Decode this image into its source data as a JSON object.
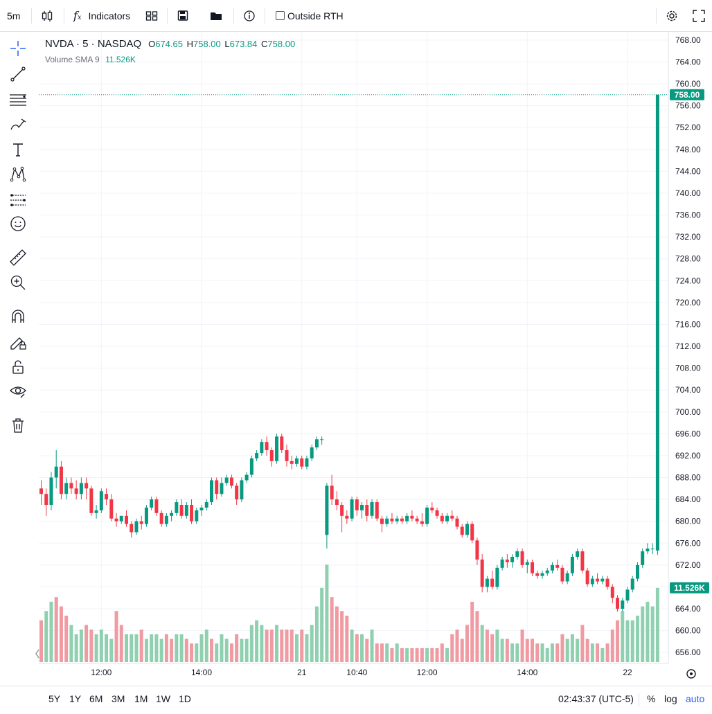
{
  "toolbar": {
    "interval": "5m",
    "indicators_label": "Indicators",
    "outside_rth_label": "Outside RTH"
  },
  "legend": {
    "symbol": "NVDA · 5 · NASDAQ",
    "open_label": "O",
    "open": "674.65",
    "high_label": "H",
    "high": "758.00",
    "low_label": "L",
    "low": "673.84",
    "close_label": "C",
    "close": "758.00",
    "volume_label": "Volume SMA 9",
    "volume_value": "11.526K"
  },
  "bottom": {
    "ranges": [
      "5Y",
      "1Y",
      "6M",
      "3M",
      "1M",
      "1W",
      "1D"
    ],
    "time": "02:43:37 (UTC-5)",
    "percent": "%",
    "log": "log",
    "auto": "auto"
  },
  "colors": {
    "up": "#089981",
    "down": "#f23645",
    "vol_up": "#8fd0b0",
    "vol_down": "#f09aa2",
    "accent": "#2962ff"
  },
  "icons": [
    "crosshair-icon",
    "trend-line-icon",
    "fib-icon",
    "brush-icon",
    "text-icon",
    "pattern-icon",
    "forecast-icon",
    "emoji-icon",
    "ruler-icon",
    "zoom-icon",
    "magnet-icon",
    "lock-drawing-icon",
    "unlock-icon",
    "eye-icon",
    "trash-icon"
  ],
  "chart_data": {
    "type": "candlestick",
    "symbol": "NVDA",
    "interval": "5",
    "exchange": "NASDAQ",
    "y_ticks": [
      768,
      764,
      760,
      756,
      752,
      748,
      744,
      740,
      736,
      732,
      728,
      724,
      720,
      716,
      712,
      708,
      704,
      700,
      696,
      692,
      688,
      684,
      680,
      676,
      672,
      668,
      664,
      660,
      656
    ],
    "ylim": [
      654,
      769.5
    ],
    "x_labels": [
      {
        "label": "12:00",
        "index": 12
      },
      {
        "label": "14:00",
        "index": 32
      },
      {
        "label": "21",
        "index": 52
      },
      {
        "label": "10:40",
        "index": 63
      },
      {
        "label": "12:00",
        "index": 77
      },
      {
        "label": "14:00",
        "index": 97
      },
      {
        "label": "22",
        "index": 117
      }
    ],
    "last_price": "758.00",
    "last_volume_label": "11.526K",
    "candles": [
      [
        686,
        687.5,
        683,
        685
      ],
      [
        685,
        686,
        681,
        683
      ],
      [
        683,
        689,
        682,
        688
      ],
      [
        688,
        693,
        686,
        690
      ],
      [
        690,
        691,
        684,
        685
      ],
      [
        685,
        688,
        684,
        687
      ],
      [
        687,
        688,
        685,
        686
      ],
      [
        686,
        687.5,
        684,
        685
      ],
      [
        685,
        688,
        684,
        687
      ],
      [
        687,
        688,
        684,
        686
      ],
      [
        686,
        686.5,
        681,
        681.5
      ],
      [
        681.5,
        683,
        680.5,
        682
      ],
      [
        682,
        686,
        681.5,
        685.5
      ],
      [
        685,
        686,
        683,
        684
      ],
      [
        684,
        685,
        680,
        680.5
      ],
      [
        680.5,
        681.5,
        679,
        680
      ],
      [
        680,
        681,
        679.5,
        681
      ],
      [
        681,
        682,
        679,
        679.5
      ],
      [
        679.5,
        680,
        677,
        678
      ],
      [
        678,
        680.5,
        677.5,
        680
      ],
      [
        680,
        681,
        678.5,
        679.5
      ],
      [
        679.5,
        683,
        679,
        682.5
      ],
      [
        682.5,
        684.5,
        682,
        684
      ],
      [
        684,
        684.5,
        681,
        681.5
      ],
      [
        681.5,
        682,
        679,
        679.5
      ],
      [
        679.5,
        681.5,
        679,
        681
      ],
      [
        681,
        682,
        680,
        681.5
      ],
      [
        681.5,
        684,
        681,
        683.5
      ],
      [
        683,
        684,
        680.5,
        681
      ],
      [
        681,
        683.5,
        680.5,
        683
      ],
      [
        683,
        684,
        679.5,
        680
      ],
      [
        680,
        682.5,
        679.5,
        682
      ],
      [
        682,
        683,
        681,
        682.5
      ],
      [
        682.5,
        684,
        682,
        683.5
      ],
      [
        683.5,
        688,
        683,
        687.5
      ],
      [
        687.5,
        688,
        684,
        685
      ],
      [
        685,
        688,
        684.5,
        687
      ],
      [
        687,
        688.5,
        686.5,
        688
      ],
      [
        688,
        688.5,
        686,
        686.5
      ],
      [
        686.5,
        687,
        683,
        684
      ],
      [
        684,
        688,
        683.5,
        687.5
      ],
      [
        687.5,
        689,
        687,
        688.5
      ],
      [
        688.5,
        692,
        688,
        691.5
      ],
      [
        691.5,
        693,
        691,
        692.5
      ],
      [
        692.5,
        695,
        692,
        694.5
      ],
      [
        694.5,
        695.5,
        692,
        693
      ],
      [
        693,
        693.5,
        690,
        691
      ],
      [
        691,
        696,
        690.5,
        695.5
      ],
      [
        695.5,
        696,
        692.5,
        693
      ],
      [
        693,
        694,
        690,
        691
      ],
      [
        691,
        692,
        689.5,
        690.5
      ],
      [
        690.5,
        692,
        690,
        691.5
      ],
      [
        691.5,
        692,
        689.5,
        690
      ],
      [
        690,
        692,
        689.5,
        691.5
      ],
      [
        691.5,
        694,
        691,
        693.5
      ],
      [
        693.5,
        695.5,
        693,
        695
      ],
      [
        695,
        695.5,
        694,
        695
      ],
      [
        677.5,
        687,
        675,
        686.5
      ],
      [
        686.5,
        688.5,
        683,
        684
      ],
      [
        684,
        685.5,
        682,
        683
      ],
      [
        683,
        683.5,
        678,
        681
      ],
      [
        681,
        682,
        679.5,
        680.5
      ],
      [
        680.5,
        684.5,
        680,
        684
      ],
      [
        684,
        684.5,
        681,
        682
      ],
      [
        682,
        683.5,
        680.5,
        683
      ],
      [
        683,
        684,
        680,
        681
      ],
      [
        681,
        684,
        680.5,
        683.5
      ],
      [
        683.5,
        684,
        680,
        680.5
      ],
      [
        680.5,
        681,
        678,
        679.5
      ],
      [
        679.5,
        681,
        679,
        680.5
      ],
      [
        680.5,
        681.5,
        679.5,
        680
      ],
      [
        680,
        681,
        679.5,
        680.5
      ],
      [
        680.5,
        681,
        679.5,
        680
      ],
      [
        680,
        681.5,
        679.5,
        681
      ],
      [
        681,
        682,
        680,
        680.5
      ],
      [
        680.5,
        681,
        679.5,
        680
      ],
      [
        680,
        681.5,
        679,
        679.5
      ],
      [
        679.5,
        683,
        679,
        682.5
      ],
      [
        682.5,
        683.5,
        681.5,
        682
      ],
      [
        682,
        682.5,
        680.5,
        681
      ],
      [
        681,
        681.5,
        679.5,
        680
      ],
      [
        680,
        681.5,
        679.5,
        681
      ],
      [
        681,
        682,
        680,
        680.5
      ],
      [
        680.5,
        681,
        678.5,
        679
      ],
      [
        679,
        679.5,
        677,
        677.5
      ],
      [
        677.5,
        680,
        677,
        679.5
      ],
      [
        679.5,
        680,
        676,
        676.5
      ],
      [
        676.5,
        677,
        672,
        673
      ],
      [
        673,
        674,
        667,
        668
      ],
      [
        668,
        670,
        667,
        669.5
      ],
      [
        669.5,
        671,
        667.5,
        668
      ],
      [
        668,
        672,
        667.5,
        671.5
      ],
      [
        671.5,
        673.5,
        671,
        673
      ],
      [
        673,
        674,
        671.5,
        672.5
      ],
      [
        672.5,
        674,
        671.5,
        673.5
      ],
      [
        673.5,
        675,
        673,
        674.5
      ],
      [
        674.5,
        675,
        671.5,
        672
      ],
      [
        672,
        673,
        670.5,
        672.5
      ],
      [
        672.5,
        673,
        670,
        670.5
      ],
      [
        670.5,
        671,
        669.5,
        670
      ],
      [
        670,
        671,
        669.5,
        670.5
      ],
      [
        670.5,
        671.5,
        670,
        671
      ],
      [
        671,
        672.5,
        670.5,
        672
      ],
      [
        672,
        673,
        671,
        671.5
      ],
      [
        671.5,
        672,
        668.5,
        669
      ],
      [
        669,
        671,
        668.5,
        670.5
      ],
      [
        670.5,
        674,
        670,
        673.5
      ],
      [
        673.5,
        675,
        673,
        674.5
      ],
      [
        674.5,
        675,
        670.5,
        671
      ],
      [
        671,
        671.5,
        668,
        668.5
      ],
      [
        668.5,
        670,
        668,
        669.5
      ],
      [
        669.5,
        670.5,
        668.5,
        669
      ],
      [
        669,
        670,
        668.5,
        669.5
      ],
      [
        669.5,
        670,
        667.5,
        668
      ],
      [
        668,
        668.5,
        665,
        666
      ],
      [
        666,
        666.5,
        663.5,
        664
      ],
      [
        664,
        666,
        663.5,
        665.5
      ],
      [
        665.5,
        668,
        665,
        667.5
      ],
      [
        667.5,
        670,
        667,
        669.5
      ],
      [
        669.5,
        672.5,
        669,
        672
      ],
      [
        672,
        675,
        671.5,
        674.5
      ],
      [
        674.5,
        676,
        674,
        675
      ],
      [
        675,
        676,
        674,
        675
      ],
      [
        674.65,
        758,
        673.84,
        758
      ]
    ],
    "volume": [
      {
        "v": 9,
        "up": false
      },
      {
        "v": 11,
        "up": true
      },
      {
        "v": 13,
        "up": true
      },
      {
        "v": 14,
        "up": false
      },
      {
        "v": 12,
        "up": false
      },
      {
        "v": 10,
        "up": false
      },
      {
        "v": 8,
        "up": true
      },
      {
        "v": 6,
        "up": true
      },
      {
        "v": 7,
        "up": true
      },
      {
        "v": 8,
        "up": false
      },
      {
        "v": 7,
        "up": false
      },
      {
        "v": 6,
        "up": true
      },
      {
        "v": 7,
        "up": true
      },
      {
        "v": 6,
        "up": true
      },
      {
        "v": 5,
        "up": true
      },
      {
        "v": 11,
        "up": false
      },
      {
        "v": 8,
        "up": false
      },
      {
        "v": 6,
        "up": true
      },
      {
        "v": 6,
        "up": true
      },
      {
        "v": 6,
        "up": true
      },
      {
        "v": 7,
        "up": false
      },
      {
        "v": 5,
        "up": true
      },
      {
        "v": 6,
        "up": true
      },
      {
        "v": 6,
        "up": true
      },
      {
        "v": 5,
        "up": true
      },
      {
        "v": 6,
        "up": false
      },
      {
        "v": 5,
        "up": false
      },
      {
        "v": 6,
        "up": true
      },
      {
        "v": 6,
        "up": true
      },
      {
        "v": 5,
        "up": false
      },
      {
        "v": 4,
        "up": false
      },
      {
        "v": 4,
        "up": true
      },
      {
        "v": 6,
        "up": true
      },
      {
        "v": 7,
        "up": true
      },
      {
        "v": 5,
        "up": false
      },
      {
        "v": 4,
        "up": true
      },
      {
        "v": 6,
        "up": true
      },
      {
        "v": 5,
        "up": true
      },
      {
        "v": 4,
        "up": false
      },
      {
        "v": 6,
        "up": false
      },
      {
        "v": 5,
        "up": true
      },
      {
        "v": 5,
        "up": true
      },
      {
        "v": 8,
        "up": true
      },
      {
        "v": 9,
        "up": true
      },
      {
        "v": 8,
        "up": true
      },
      {
        "v": 7,
        "up": false
      },
      {
        "v": 7,
        "up": false
      },
      {
        "v": 8,
        "up": true
      },
      {
        "v": 7,
        "up": false
      },
      {
        "v": 7,
        "up": false
      },
      {
        "v": 7,
        "up": false
      },
      {
        "v": 6,
        "up": true
      },
      {
        "v": 7,
        "up": false
      },
      {
        "v": 6,
        "up": true
      },
      {
        "v": 8,
        "up": true
      },
      {
        "v": 12,
        "up": true
      },
      {
        "v": 16,
        "up": true
      },
      {
        "v": 21,
        "up": true
      },
      {
        "v": 14,
        "up": false
      },
      {
        "v": 12,
        "up": false
      },
      {
        "v": 11,
        "up": false
      },
      {
        "v": 10,
        "up": false
      },
      {
        "v": 7,
        "up": true
      },
      {
        "v": 6,
        "up": false
      },
      {
        "v": 6,
        "up": true
      },
      {
        "v": 5,
        "up": false
      },
      {
        "v": 7,
        "up": true
      },
      {
        "v": 4,
        "up": false
      },
      {
        "v": 4,
        "up": false
      },
      {
        "v": 4,
        "up": true
      },
      {
        "v": 3,
        "up": false
      },
      {
        "v": 4,
        "up": true
      },
      {
        "v": 3,
        "up": false
      },
      {
        "v": 3,
        "up": true
      },
      {
        "v": 3,
        "up": false
      },
      {
        "v": 3,
        "up": false
      },
      {
        "v": 3,
        "up": false
      },
      {
        "v": 3,
        "up": true
      },
      {
        "v": 3,
        "up": false
      },
      {
        "v": 3,
        "up": false
      },
      {
        "v": 4,
        "up": false
      },
      {
        "v": 3,
        "up": true
      },
      {
        "v": 6,
        "up": false
      },
      {
        "v": 7,
        "up": false
      },
      {
        "v": 5,
        "up": false
      },
      {
        "v": 8,
        "up": false
      },
      {
        "v": 13,
        "up": false
      },
      {
        "v": 11,
        "up": false
      },
      {
        "v": 8,
        "up": true
      },
      {
        "v": 7,
        "up": false
      },
      {
        "v": 6,
        "up": false
      },
      {
        "v": 7,
        "up": true
      },
      {
        "v": 5,
        "up": true
      },
      {
        "v": 5,
        "up": false
      },
      {
        "v": 4,
        "up": true
      },
      {
        "v": 4,
        "up": true
      },
      {
        "v": 7,
        "up": false
      },
      {
        "v": 5,
        "up": false
      },
      {
        "v": 5,
        "up": false
      },
      {
        "v": 4,
        "up": false
      },
      {
        "v": 4,
        "up": true
      },
      {
        "v": 3,
        "up": true
      },
      {
        "v": 4,
        "up": true
      },
      {
        "v": 4,
        "up": false
      },
      {
        "v": 6,
        "up": false
      },
      {
        "v": 5,
        "up": true
      },
      {
        "v": 6,
        "up": true
      },
      {
        "v": 5,
        "up": true
      },
      {
        "v": 8,
        "up": false
      },
      {
        "v": 5,
        "up": false
      },
      {
        "v": 4,
        "up": true
      },
      {
        "v": 4,
        "up": false
      },
      {
        "v": 3,
        "up": true
      },
      {
        "v": 4,
        "up": false
      },
      {
        "v": 7,
        "up": false
      },
      {
        "v": 9,
        "up": false
      },
      {
        "v": 11,
        "up": true
      },
      {
        "v": 9,
        "up": true
      },
      {
        "v": 9,
        "up": true
      },
      {
        "v": 10,
        "up": true
      },
      {
        "v": 12,
        "up": true
      },
      {
        "v": 13,
        "up": true
      },
      {
        "v": 12,
        "up": true
      },
      {
        "v": 16,
        "up": true
      }
    ]
  }
}
